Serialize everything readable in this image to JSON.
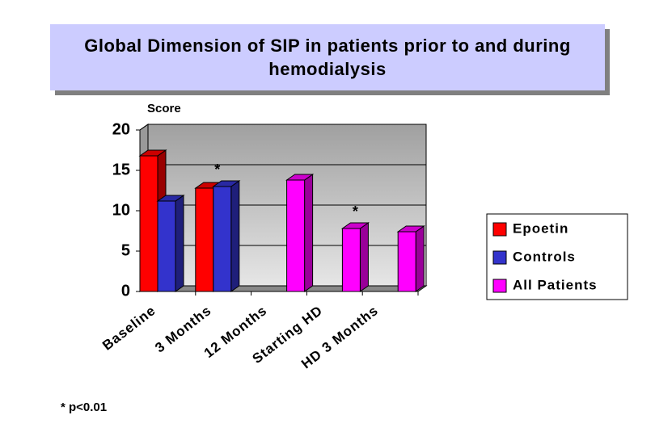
{
  "chart_data": {
    "type": "bar3d",
    "title": "Global Dimension of SIP in patients prior to and during hemodialysis",
    "y_label": "Score",
    "categories": [
      "Baseline",
      "3 Months",
      "12 Months",
      "Starting HD",
      "HD 3 Months"
    ],
    "series": [
      {
        "name": "Epoetin",
        "color": "#ff0000",
        "values": [
          16.8,
          12.8,
          null,
          null,
          null
        ]
      },
      {
        "name": "Controls",
        "color": "#3333cc",
        "values": [
          11.2,
          13.0,
          null,
          null,
          null
        ]
      },
      {
        "name": "All Patients",
        "color": "#ff00ff",
        "values": [
          null,
          null,
          13.8,
          7.8,
          7.4
        ]
      }
    ],
    "ylim": [
      0,
      20
    ],
    "yticks": [
      0,
      5,
      10,
      15,
      20
    ],
    "grid": true,
    "annotations": [
      {
        "text": "*",
        "category": "3 Months"
      },
      {
        "text": "*",
        "category": "Starting HD"
      }
    ],
    "footnote": "* p<0.01",
    "legend": "right"
  }
}
